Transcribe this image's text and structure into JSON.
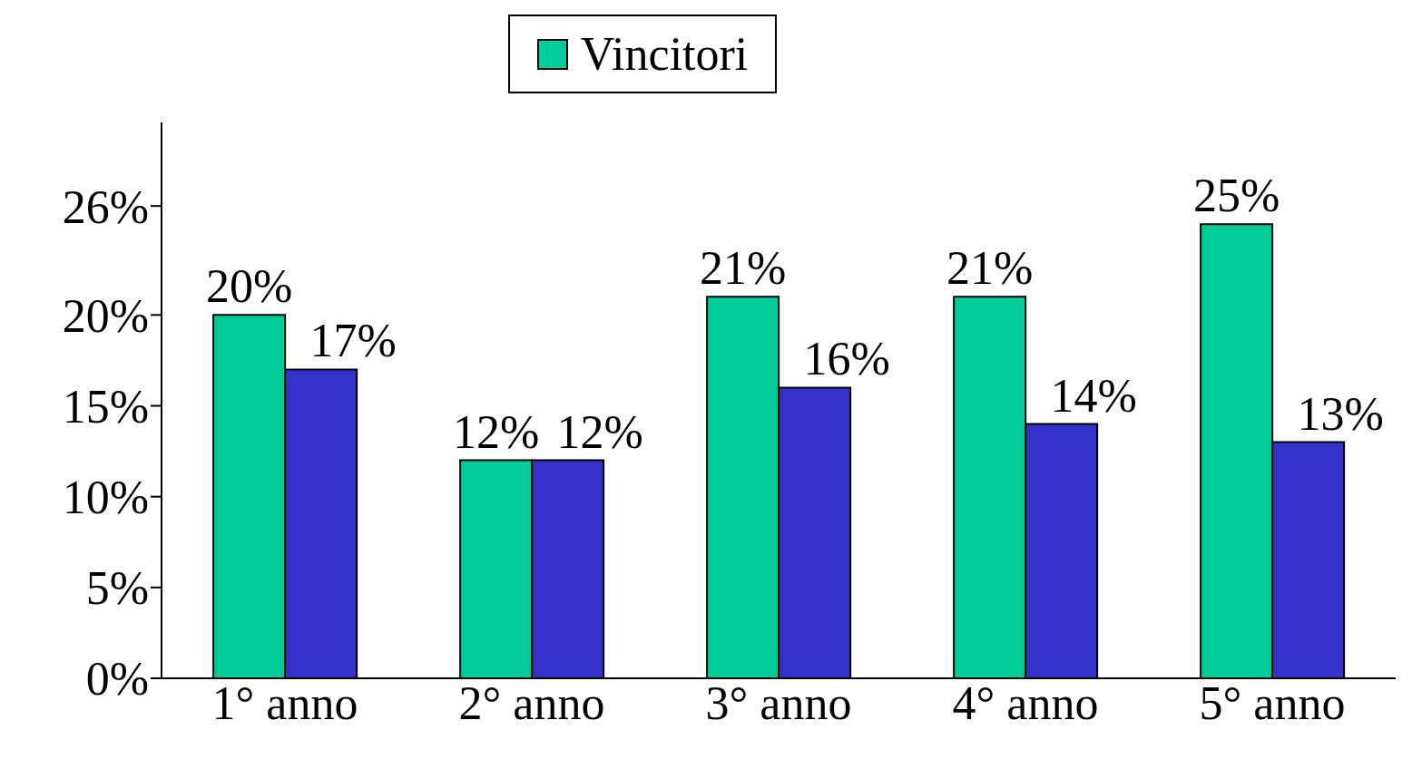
{
  "chart_data": {
    "type": "bar",
    "categories": [
      "1° anno",
      "2° anno",
      "3° anno",
      "4° anno",
      "5° anno"
    ],
    "series": [
      {
        "name": "Vincitori",
        "color": "#00cc99",
        "values": [
          20,
          12,
          21,
          21,
          25
        ],
        "value_labels": [
          "20%",
          "12%",
          "21%",
          "21%",
          "25%"
        ]
      },
      {
        "color": "#3333cc",
        "values": [
          17,
          12,
          16,
          14,
          13
        ],
        "value_labels": [
          "17%",
          "12%",
          "16%",
          "14%",
          "13%"
        ]
      }
    ],
    "ylim": [
      0,
      30.6
    ],
    "yticks": [
      {
        "value": 0,
        "label": "0%"
      },
      {
        "value": 5,
        "label": "5%"
      },
      {
        "value": 10,
        "label": "10%"
      },
      {
        "value": 15,
        "label": "15%"
      },
      {
        "value": 20,
        "label": "20%"
      },
      {
        "value": 26,
        "label": "26%"
      }
    ],
    "grid": false,
    "legend": "top"
  }
}
